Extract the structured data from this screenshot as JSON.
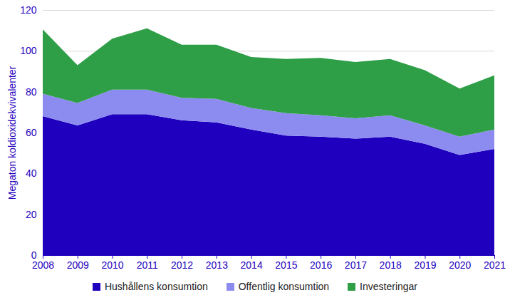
{
  "chart_data": {
    "type": "area",
    "stacked": true,
    "grid": true,
    "y_label": "Megaton koldioxidekvivalenter",
    "x": [
      2008,
      2009,
      2010,
      2011,
      2012,
      2013,
      2014,
      2015,
      2016,
      2017,
      2018,
      2019,
      2020,
      2021
    ],
    "xlim": [
      2008,
      2021
    ],
    "xticks": [
      2008,
      2009,
      2010,
      2011,
      2012,
      2013,
      2014,
      2015,
      2016,
      2017,
      2018,
      2019,
      2020,
      2021
    ],
    "ylim": [
      0,
      120
    ],
    "yticks": [
      0,
      20,
      40,
      60,
      80,
      100,
      120
    ],
    "legend": "bottom",
    "series": [
      {
        "name": "Hushållens konsumtion",
        "color": "#1e00be",
        "values": [
          68,
          63.5,
          69,
          69,
          66,
          65,
          61.5,
          58.5,
          58,
          57,
          58,
          54.5,
          49,
          52
        ]
      },
      {
        "name": "Offentlig konsumtion",
        "color": "#8c8cf0",
        "values": [
          11,
          11,
          12,
          12,
          11,
          11.5,
          10.5,
          11,
          10.5,
          10,
          10.5,
          9,
          9,
          9.5
        ]
      },
      {
        "name": "Investeringar",
        "color": "#2e9e47",
        "values": [
          31.5,
          18.5,
          25,
          30,
          26,
          26.5,
          25,
          26.5,
          28,
          27.5,
          27.5,
          27,
          23.5,
          26.5
        ]
      }
    ]
  }
}
